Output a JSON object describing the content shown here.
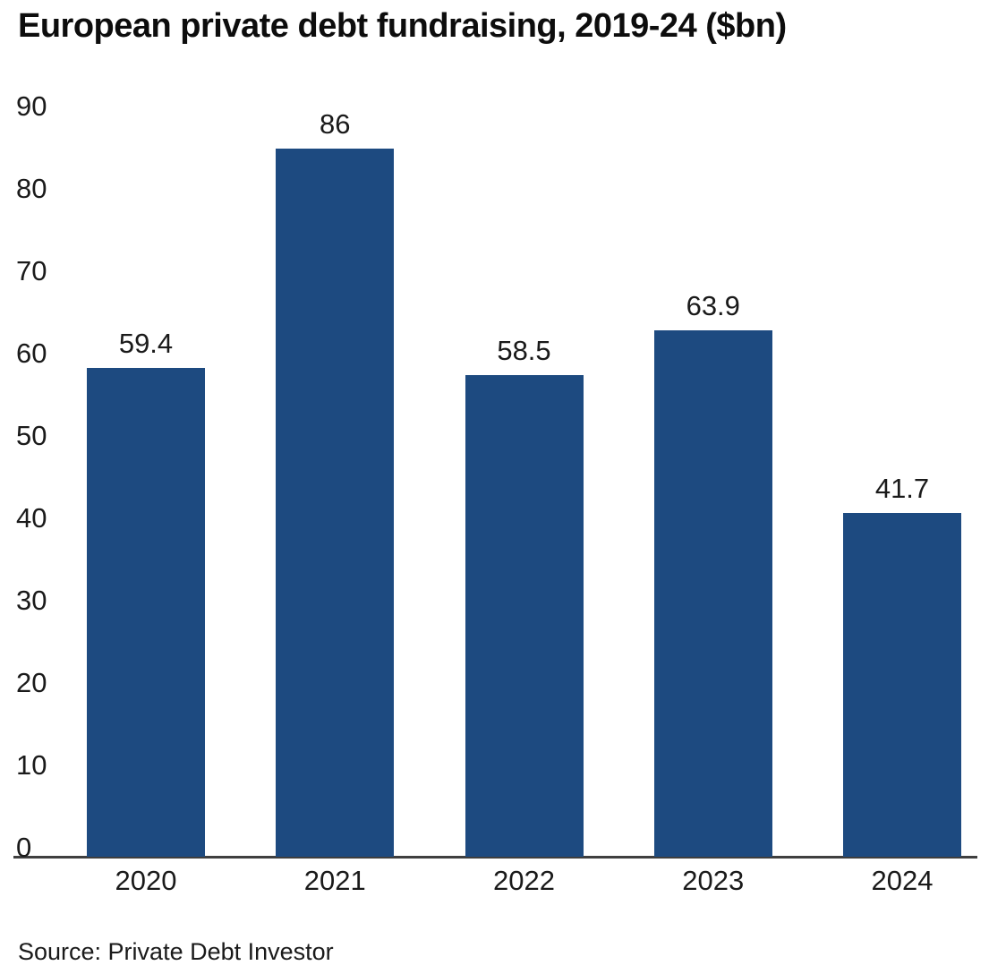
{
  "title": "European private debt fundraising, 2019-24 ($bn)",
  "source": "Source: Private Debt Investor",
  "colors": {
    "bar": "#1d4a80",
    "axis": "#3f3f3f",
    "text": "#1a1a1a"
  },
  "chart_data": {
    "type": "bar",
    "title": "European private debt fundraising, 2019-24 ($bn)",
    "categories": [
      "2020",
      "2021",
      "2022",
      "2023",
      "2024"
    ],
    "values": [
      59.4,
      86,
      58.5,
      63.9,
      41.7
    ],
    "value_labels": [
      "59.4",
      "86",
      "58.5",
      "63.9",
      "41.7"
    ],
    "xlabel": "",
    "ylabel": "",
    "ylim": [
      0,
      90
    ],
    "yticks": [
      0,
      10,
      20,
      30,
      40,
      50,
      60,
      70,
      80,
      90
    ],
    "grid": false,
    "legend": false,
    "source": "Source: Private Debt Investor"
  }
}
